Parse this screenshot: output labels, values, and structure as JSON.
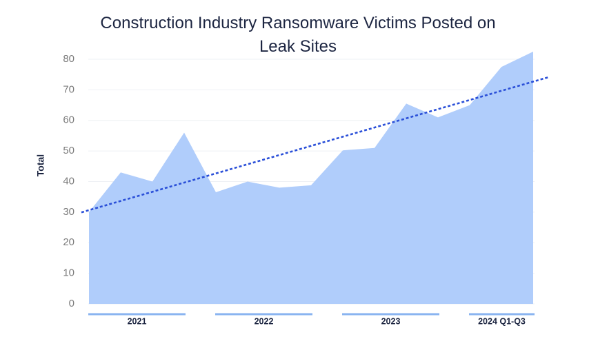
{
  "chart_data": {
    "type": "area",
    "title": "Construction Industry Ransomware Victims Posted on Leak Sites",
    "y_label": "Total",
    "categories": [
      null,
      null,
      null,
      null,
      null,
      null,
      null,
      null,
      null,
      null,
      null,
      null,
      null,
      null,
      null
    ],
    "groups": [
      {
        "label": "2021",
        "count": 4
      },
      {
        "label": "2022",
        "count": 4
      },
      {
        "label": "2023",
        "count": 4
      },
      {
        "label": "2024 Q1-Q3",
        "count": 3
      }
    ],
    "series": [
      {
        "name": "Total",
        "color": "#b0cdfb",
        "values": [
          30,
          43,
          40,
          56,
          36.5,
          40,
          38,
          38.8,
          50.2,
          51,
          65.5,
          61,
          65,
          77.5,
          82.5
        ]
      }
    ],
    "trendline": "linear",
    "trend_color": "#2a4fd8",
    "group_bar_color": "#8ab4f0",
    "ylim": [
      0,
      85
    ],
    "yticks": [
      0,
      10,
      20,
      30,
      40,
      50,
      60,
      70,
      80
    ],
    "grid": true
  }
}
